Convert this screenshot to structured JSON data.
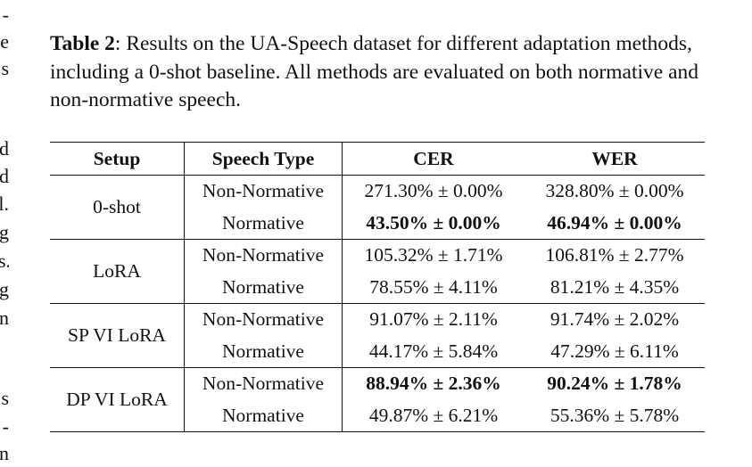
{
  "left_column_fragments": [
    "-",
    "e",
    "s",
    "d",
    "d",
    "l.",
    "g",
    "s.",
    "g",
    "n",
    "s",
    "-",
    "n"
  ],
  "caption": {
    "label": "Table 2",
    "text": ": Results on the UA-Speech dataset for different adaptation methods, including a 0-shot baseline. All methods are evaluated on both normative and non-normative speech."
  },
  "table": {
    "headers": [
      "Setup",
      "Speech Type",
      "CER",
      "WER"
    ],
    "groups": [
      {
        "setup": "0-shot",
        "rows": [
          {
            "type": "Non-Normative",
            "cer": "271.30% ± 0.00%",
            "wer": "328.80% ± 0.00%",
            "cer_bold": false,
            "wer_bold": false
          },
          {
            "type": "Normative",
            "cer": "43.50% ± 0.00%",
            "wer": "46.94% ± 0.00%",
            "cer_bold": true,
            "wer_bold": true
          }
        ]
      },
      {
        "setup": "LoRA",
        "rows": [
          {
            "type": "Non-Normative",
            "cer": "105.32% ± 1.71%",
            "wer": "106.81% ± 2.77%",
            "cer_bold": false,
            "wer_bold": false
          },
          {
            "type": "Normative",
            "cer": "78.55% ± 4.11%",
            "wer": "81.21% ± 4.35%",
            "cer_bold": false,
            "wer_bold": false
          }
        ]
      },
      {
        "setup": "SP VI LoRA",
        "rows": [
          {
            "type": "Non-Normative",
            "cer": "91.07% ± 2.11%",
            "wer": "91.74% ± 2.02%",
            "cer_bold": false,
            "wer_bold": false
          },
          {
            "type": "Normative",
            "cer": "44.17% ± 5.84%",
            "wer": "47.29% ± 6.11%",
            "cer_bold": false,
            "wer_bold": false
          }
        ]
      },
      {
        "setup": "DP VI LoRA",
        "rows": [
          {
            "type": "Non-Normative",
            "cer": "88.94% ± 2.36%",
            "wer": "90.24% ± 1.78%",
            "cer_bold": true,
            "wer_bold": true
          },
          {
            "type": "Normative",
            "cer": "49.87% ± 6.21%",
            "wer": "55.36% ± 5.78%",
            "cer_bold": false,
            "wer_bold": false
          }
        ]
      }
    ]
  }
}
